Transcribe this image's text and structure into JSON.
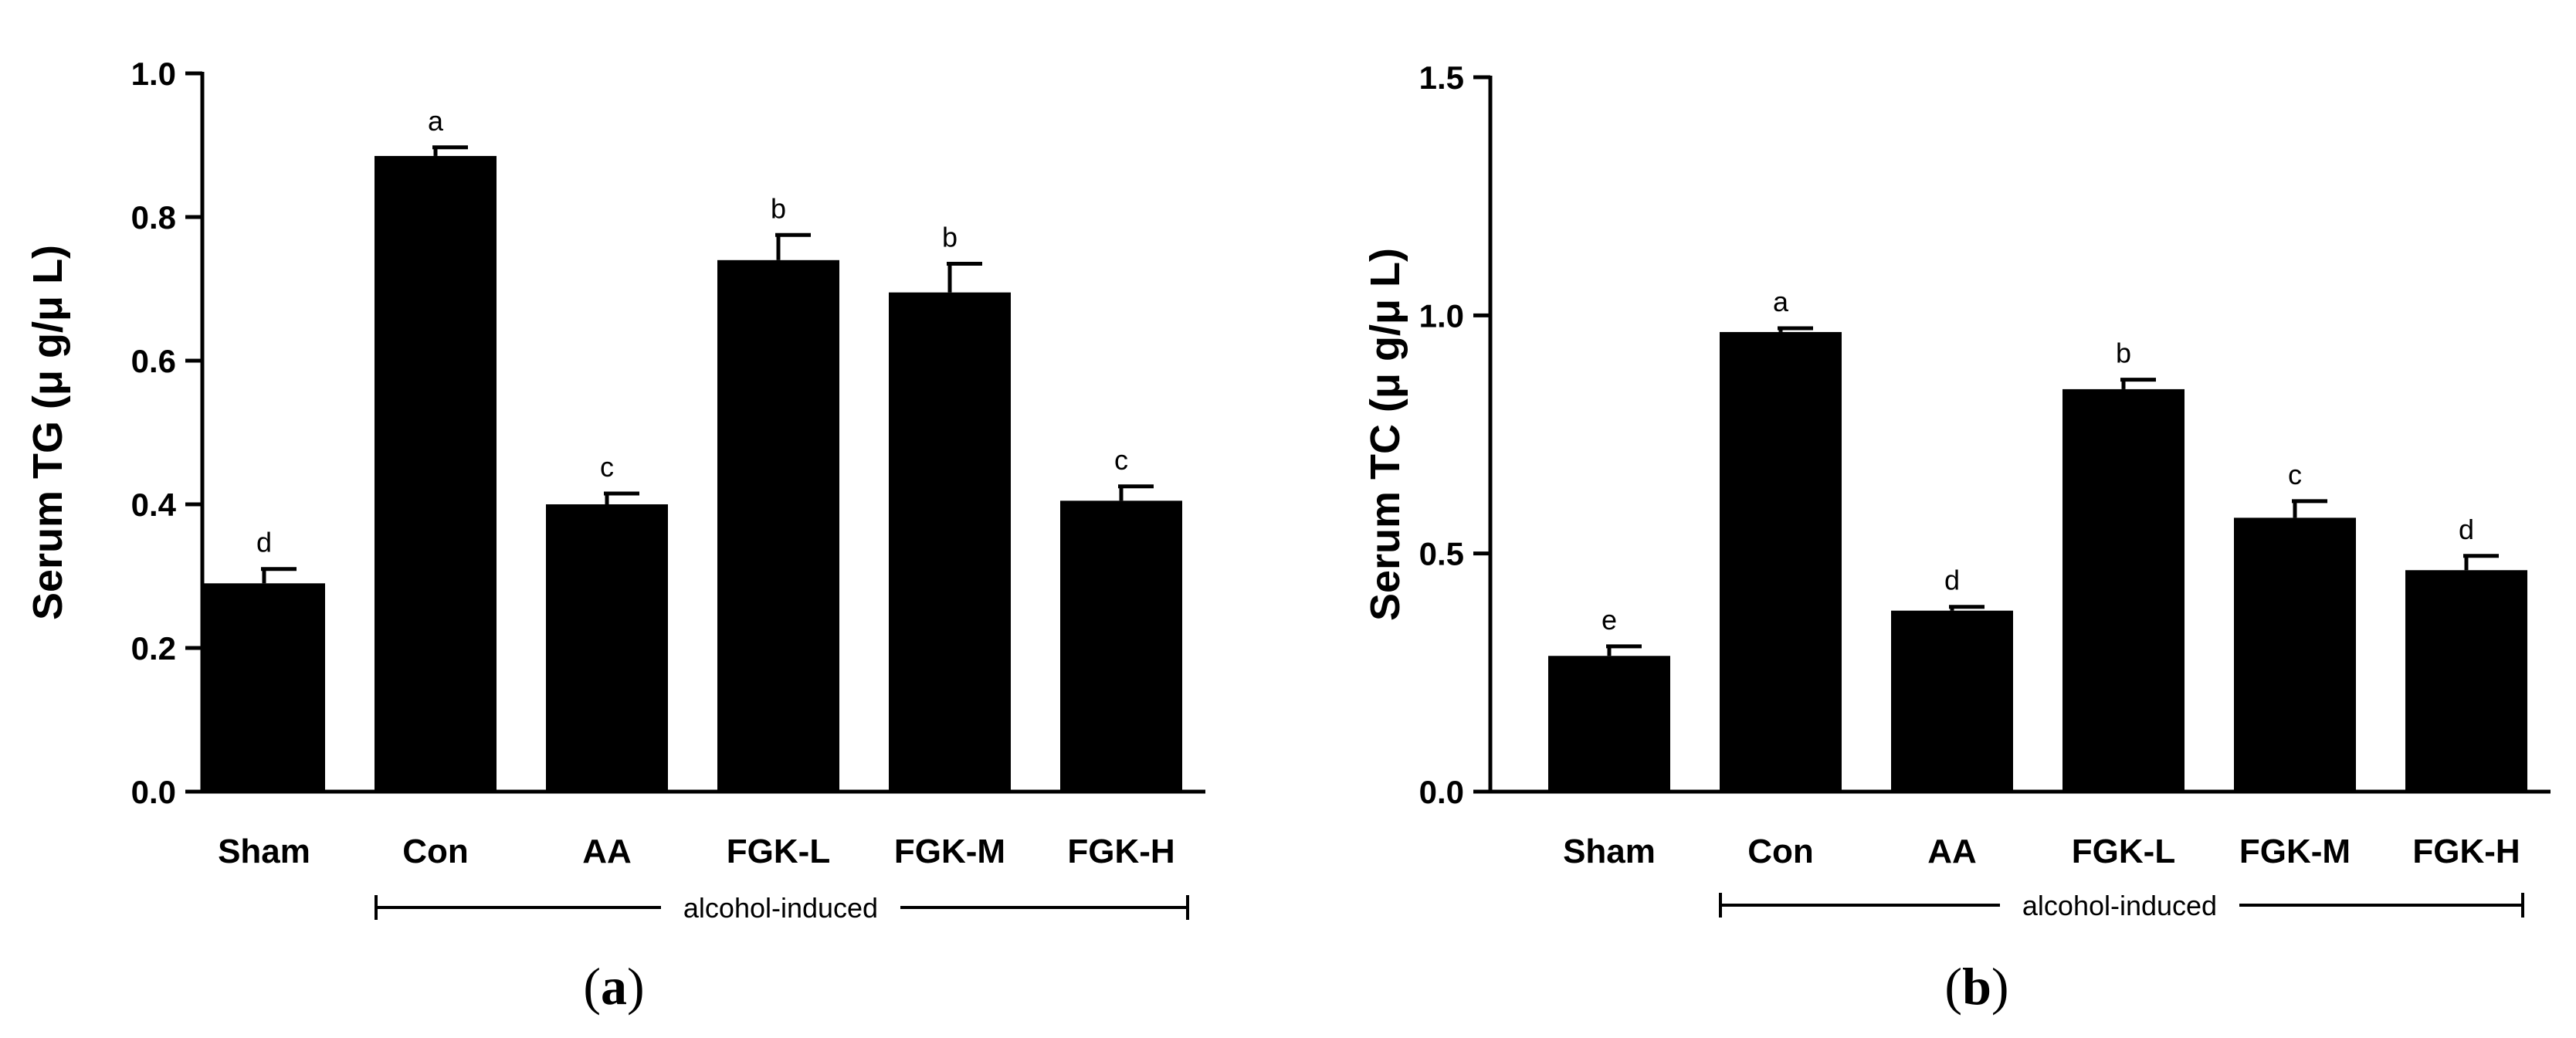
{
  "chart_data": [
    {
      "type": "bar",
      "panel": "(a)",
      "panel_letter": "a",
      "ylabel": "Serum TG (μ g/μ L)",
      "ylim": [
        0,
        1.0
      ],
      "yticks": [
        0.0,
        0.2,
        0.4,
        0.6,
        0.8,
        1.0
      ],
      "ytick_labels": [
        "0.0",
        "0.2",
        "0.4",
        "0.6",
        "0.8",
        "1.0"
      ],
      "categories": [
        "Sham",
        "Con",
        "AA",
        "FGK-L",
        "FGK-M",
        "FGK-H"
      ],
      "values": [
        0.29,
        0.885,
        0.4,
        0.74,
        0.695,
        0.405
      ],
      "errors": [
        0.02,
        0.012,
        0.015,
        0.035,
        0.04,
        0.02
      ],
      "significance": [
        "d",
        "a",
        "c",
        "b",
        "b",
        "c"
      ],
      "group_bracket": {
        "label": "alcohol-induced",
        "from": "Con",
        "to": "FGK-H"
      }
    },
    {
      "type": "bar",
      "panel": "(b)",
      "panel_letter": "b",
      "ylabel": "Serum TC (μ g/μ L)",
      "ylim": [
        0,
        1.5
      ],
      "yticks": [
        0.0,
        0.5,
        1.0,
        1.5
      ],
      "ytick_labels": [
        "0.0",
        "0.5",
        "1.0",
        "1.5"
      ],
      "categories": [
        "Sham",
        "Con",
        "AA",
        "FGK-L",
        "FGK-M",
        "FGK-H"
      ],
      "values": [
        0.285,
        0.965,
        0.38,
        0.845,
        0.575,
        0.465
      ],
      "errors": [
        0.02,
        0.008,
        0.008,
        0.02,
        0.035,
        0.03
      ],
      "significance": [
        "e",
        "a",
        "d",
        "b",
        "c",
        "d"
      ],
      "group_bracket": {
        "label": "alcohol-induced",
        "from": "Con",
        "to": "FGK-H"
      }
    }
  ]
}
